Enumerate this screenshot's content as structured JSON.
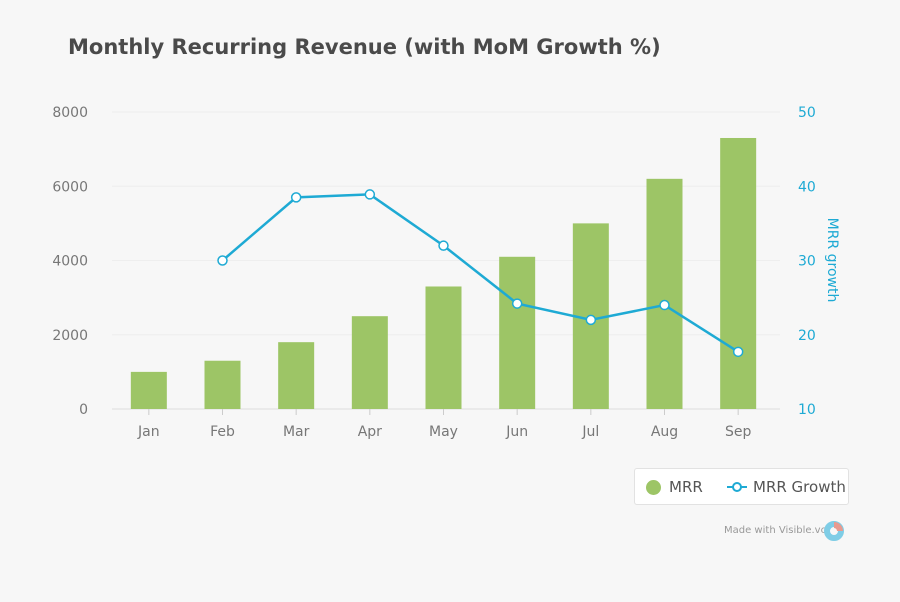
{
  "chart_data": {
    "type": "bar+line",
    "title": "Monthly Recurring Revenue (with MoM Growth %)",
    "categories": [
      "Jan",
      "Feb",
      "Mar",
      "Apr",
      "May",
      "Jun",
      "Jul",
      "Aug",
      "Sep"
    ],
    "series": [
      {
        "name": "MRR",
        "type": "bar",
        "axis": "left",
        "color": "#9dc566",
        "values": [
          1000,
          1300,
          1800,
          2500,
          3300,
          4100,
          5000,
          6200,
          7300
        ]
      },
      {
        "name": "MRR Growth",
        "type": "line",
        "axis": "right",
        "color": "#1eaad4",
        "values": [
          null,
          30,
          38.5,
          38.9,
          32,
          24.2,
          22,
          24,
          17.7
        ]
      }
    ],
    "y_left": {
      "range": [
        0,
        8000
      ],
      "ticks": [
        "0",
        "2000",
        "4000",
        "6000",
        "8000"
      ],
      "label": ""
    },
    "y_right": {
      "range": [
        10,
        50
      ],
      "ticks": [
        "10",
        "20",
        "30",
        "40",
        "50"
      ],
      "label": "MRR growth",
      "color": "#1eaad4"
    },
    "grid": true,
    "legend_position": "bottom-right"
  },
  "credit": "Made with Visible.vc"
}
